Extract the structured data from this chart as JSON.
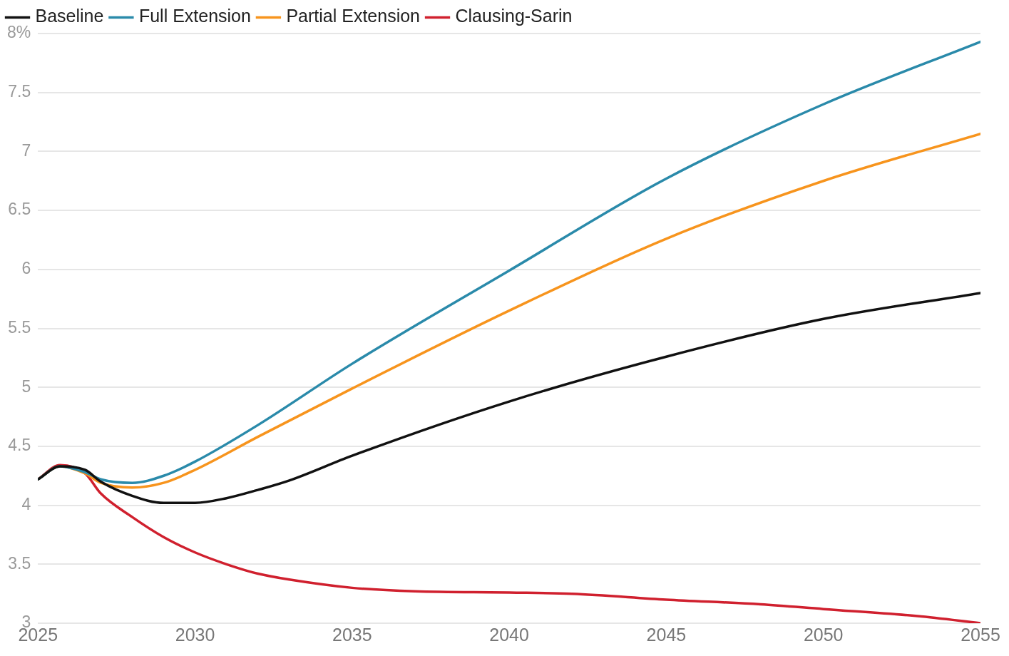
{
  "chart_data": {
    "type": "line",
    "legend": "top left",
    "grid": "y",
    "marker": "none",
    "line_style": "solid",
    "xlim": [
      2025,
      2055
    ],
    "xticks": [
      2025,
      2030,
      2035,
      2040,
      2045,
      2050,
      2055
    ],
    "ylim": [
      3,
      8
    ],
    "yticks": [
      3,
      3.5,
      4,
      4.5,
      5,
      5.5,
      6,
      6.5,
      7,
      7.5,
      {
        "value": 8,
        "label": "8%"
      }
    ],
    "series": [
      {
        "name": "Baseline",
        "color": "#111111",
        "x": [
          2025,
          2025.7,
          2026.5,
          2027,
          2028,
          2029,
          2030,
          2031,
          2032,
          2033,
          2035,
          2040,
          2045,
          2050,
          2055
        ],
        "values": [
          4.22,
          4.33,
          4.3,
          4.2,
          4.08,
          4.02,
          4.02,
          4.06,
          4.13,
          4.21,
          4.42,
          4.88,
          5.26,
          5.58,
          5.8
        ]
      },
      {
        "name": "Full Extension",
        "color": "#2a8aaa",
        "x": [
          2025,
          2025.7,
          2026.5,
          2027,
          2028,
          2029,
          2030,
          2032,
          2035,
          2040,
          2045,
          2050,
          2055
        ],
        "values": [
          4.22,
          4.33,
          4.28,
          4.22,
          4.19,
          4.25,
          4.37,
          4.68,
          5.2,
          5.99,
          6.77,
          7.4,
          7.93
        ]
      },
      {
        "name": "Partial Extension",
        "color": "#f7941d",
        "x": [
          2025,
          2025.7,
          2026.5,
          2027,
          2028,
          2029,
          2030,
          2032,
          2035,
          2040,
          2045,
          2050,
          2055
        ],
        "values": [
          4.22,
          4.33,
          4.27,
          4.19,
          4.15,
          4.19,
          4.3,
          4.58,
          4.99,
          5.65,
          6.26,
          6.75,
          7.15
        ]
      },
      {
        "name": "Clausing-Sarin",
        "color": "#d0202e",
        "x": [
          2025,
          2025.7,
          2026.5,
          2027,
          2028,
          2029,
          2030,
          2031,
          2032,
          2033,
          2035,
          2037,
          2040,
          2042,
          2045,
          2048,
          2050,
          2053,
          2055
        ],
        "values": [
          4.22,
          4.34,
          4.27,
          4.1,
          3.9,
          3.73,
          3.6,
          3.5,
          3.42,
          3.37,
          3.3,
          3.27,
          3.26,
          3.25,
          3.2,
          3.16,
          3.12,
          3.06,
          3.0
        ]
      }
    ]
  }
}
